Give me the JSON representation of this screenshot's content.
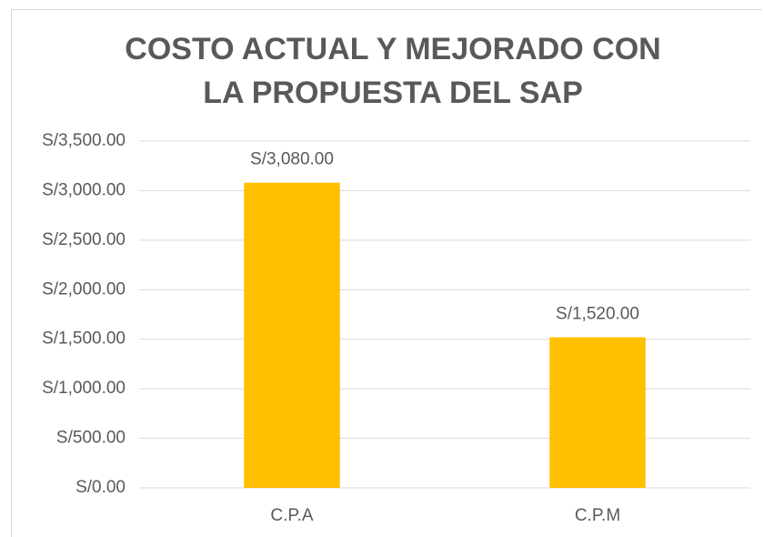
{
  "chart_data": {
    "type": "bar",
    "title": "COSTO ACTUAL Y MEJORADO CON LA PROPUESTA DEL SAP",
    "categories": [
      "C.P.A",
      "C.P.M"
    ],
    "values": [
      3080,
      1520
    ],
    "value_labels": [
      "S/3,080.00",
      "S/1,520.00"
    ],
    "color": "#ffc000",
    "ylim": [
      0,
      3500
    ],
    "yticks": [
      {
        "value": 0,
        "label": "S/0.00"
      },
      {
        "value": 500,
        "label": "S/500.00"
      },
      {
        "value": 1000,
        "label": "S/1,000.00"
      },
      {
        "value": 1500,
        "label": "S/1,500.00"
      },
      {
        "value": 2000,
        "label": "S/2,000.00"
      },
      {
        "value": 2500,
        "label": "S/2,500.00"
      },
      {
        "value": 3000,
        "label": "S/3,000.00"
      },
      {
        "value": 3500,
        "label": "S/3,500.00"
      }
    ],
    "grid": true
  }
}
